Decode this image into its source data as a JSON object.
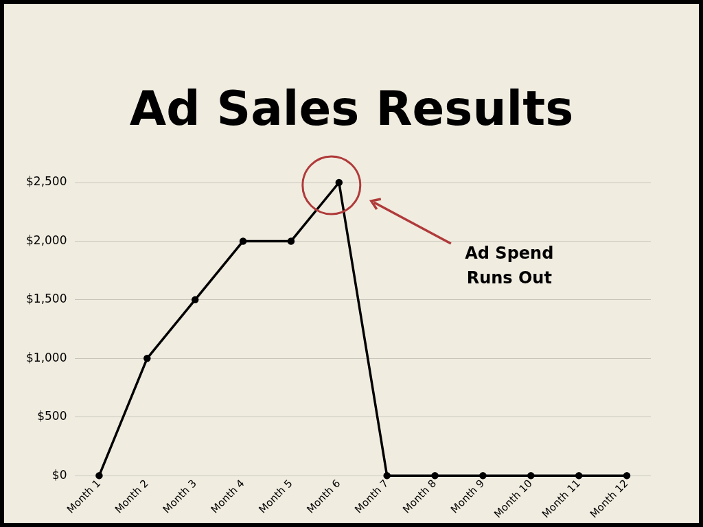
{
  "chart_data": {
    "type": "line",
    "title": "Ad Sales Results",
    "categories": [
      "Month 1",
      "Month 2",
      "Month 3",
      "Month 4",
      "Month 5",
      "Month 6",
      "Month 7",
      "Month 8",
      "Month 9",
      "Month 10",
      "Month 11",
      "Month 12"
    ],
    "series": [
      {
        "color": "#000000",
        "values": [
          0,
          1000,
          1500,
          2000,
          2000,
          2500,
          0,
          0,
          0,
          0,
          0,
          0
        ]
      }
    ],
    "ylim": [
      0,
      2500
    ],
    "yticks": [
      {
        "value": 0,
        "label": "$0"
      },
      {
        "value": 500,
        "label": "$500"
      },
      {
        "value": 1000,
        "label": "$1,000"
      },
      {
        "value": 1500,
        "label": "$1,500"
      },
      {
        "value": 2000,
        "label": "$2,000"
      },
      {
        "value": 2500,
        "label": "$2,500"
      }
    ],
    "grid": "y",
    "legend": false,
    "marker": "circle",
    "line_style": "solid",
    "annotations": [
      "Ad Spend Runs Out"
    ]
  }
}
